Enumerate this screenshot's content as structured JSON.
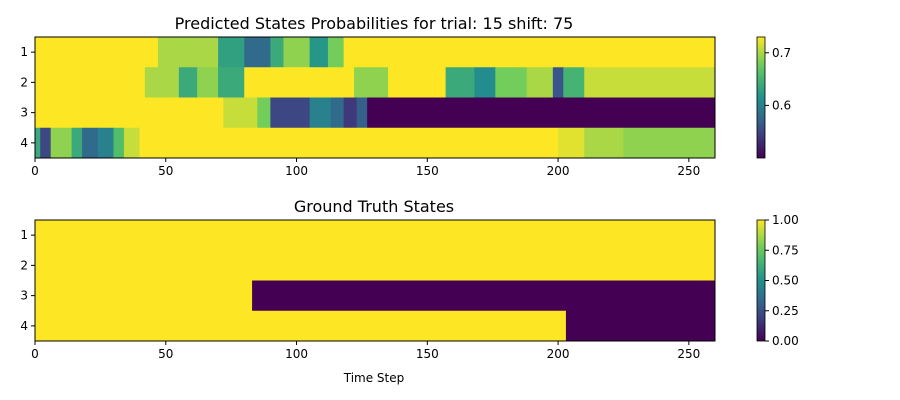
{
  "chart_data": [
    {
      "type": "heatmap",
      "title": "Predicted States Probabilities for trial: 15 shift: 75",
      "xlabel": "",
      "ylabel": "",
      "rows": [
        "1",
        "2",
        "3",
        "4"
      ],
      "x_range": [
        0,
        260
      ],
      "x_ticks": [
        "0",
        "50",
        "100",
        "150",
        "200",
        "250"
      ],
      "colorscale": "viridis",
      "color_range": [
        0.5,
        0.73
      ],
      "colorbar_ticks": [
        "0.6",
        "0.7"
      ],
      "colorbar_tick_values": [
        0.6,
        0.7
      ],
      "row_segments": [
        [
          [
            0,
            47,
            0.73
          ],
          [
            47,
            70,
            0.7
          ],
          [
            70,
            80,
            0.63
          ],
          [
            80,
            90,
            0.58
          ],
          [
            90,
            95,
            0.64
          ],
          [
            95,
            105,
            0.69
          ],
          [
            105,
            112,
            0.62
          ],
          [
            112,
            118,
            0.68
          ],
          [
            118,
            260,
            0.73
          ]
        ],
        [
          [
            0,
            42,
            0.73
          ],
          [
            42,
            55,
            0.7
          ],
          [
            55,
            62,
            0.64
          ],
          [
            62,
            70,
            0.69
          ],
          [
            70,
            80,
            0.64
          ],
          [
            80,
            122,
            0.73
          ],
          [
            122,
            135,
            0.69
          ],
          [
            135,
            157,
            0.73
          ],
          [
            157,
            168,
            0.64
          ],
          [
            168,
            176,
            0.61
          ],
          [
            176,
            188,
            0.68
          ],
          [
            188,
            198,
            0.7
          ],
          [
            198,
            202,
            0.56
          ],
          [
            202,
            210,
            0.65
          ],
          [
            210,
            260,
            0.71
          ]
        ],
        [
          [
            0,
            72,
            0.73
          ],
          [
            72,
            85,
            0.71
          ],
          [
            85,
            90,
            0.68
          ],
          [
            90,
            105,
            0.55
          ],
          [
            105,
            113,
            0.6
          ],
          [
            113,
            118,
            0.58
          ],
          [
            118,
            123,
            0.54
          ],
          [
            123,
            127,
            0.57
          ],
          [
            127,
            260,
            0.5
          ]
        ],
        [
          [
            0,
            2,
            0.64
          ],
          [
            2,
            6,
            0.55
          ],
          [
            6,
            14,
            0.69
          ],
          [
            14,
            18,
            0.64
          ],
          [
            18,
            24,
            0.58
          ],
          [
            24,
            30,
            0.6
          ],
          [
            30,
            34,
            0.66
          ],
          [
            34,
            40,
            0.71
          ],
          [
            40,
            200,
            0.73
          ],
          [
            200,
            210,
            0.72
          ],
          [
            210,
            225,
            0.7
          ],
          [
            225,
            260,
            0.69
          ]
        ]
      ]
    },
    {
      "type": "heatmap",
      "title": "Ground Truth States",
      "xlabel": "Time Step",
      "ylabel": "",
      "rows": [
        "1",
        "2",
        "3",
        "4"
      ],
      "x_range": [
        0,
        260
      ],
      "x_ticks": [
        "0",
        "50",
        "100",
        "150",
        "200",
        "250"
      ],
      "colorscale": "viridis",
      "color_range": [
        0,
        1
      ],
      "colorbar_ticks": [
        "0.00",
        "0.25",
        "0.50",
        "0.75",
        "1.00"
      ],
      "colorbar_tick_values": [
        0,
        0.25,
        0.5,
        0.75,
        1
      ],
      "row_segments": [
        [
          [
            0,
            260,
            1
          ]
        ],
        [
          [
            0,
            260,
            1
          ]
        ],
        [
          [
            0,
            83,
            1
          ],
          [
            83,
            260,
            0
          ]
        ],
        [
          [
            0,
            203,
            1
          ],
          [
            203,
            260,
            0
          ]
        ]
      ]
    }
  ]
}
